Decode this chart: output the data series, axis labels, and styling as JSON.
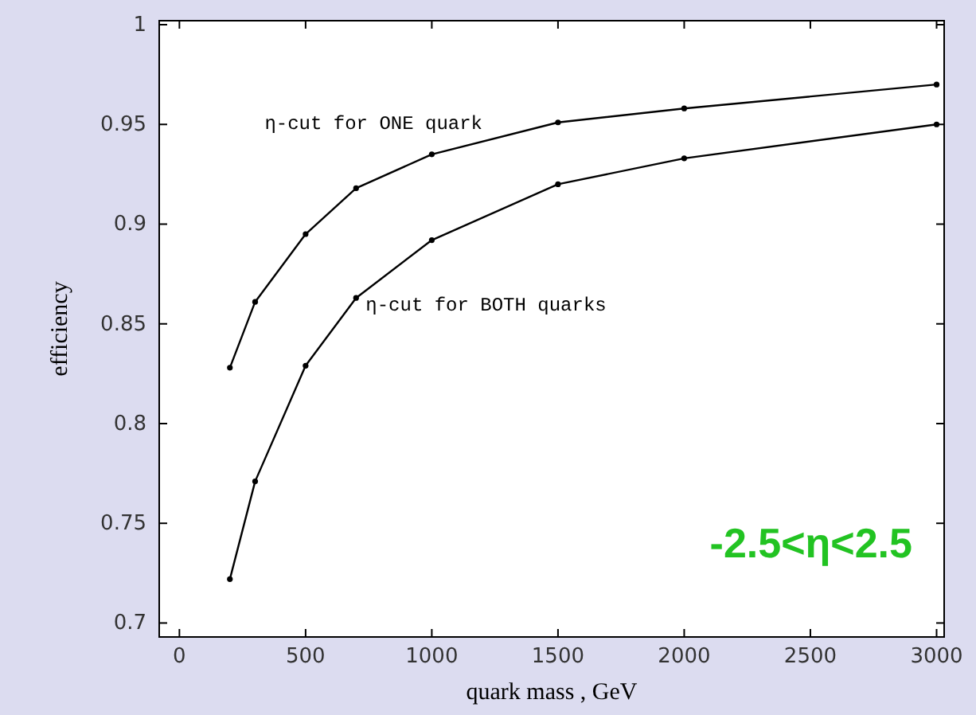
{
  "chart_data": {
    "type": "line",
    "xlabel": "quark mass , GeV",
    "ylabel": "efficiency",
    "xlim": [
      -80,
      3030
    ],
    "ylim": [
      0.693,
      1.002
    ],
    "xticks": [
      0,
      500,
      1000,
      1500,
      2000,
      2500,
      3000
    ],
    "yticks": [
      0.7,
      0.75,
      0.8,
      0.85,
      0.9,
      0.95,
      1
    ],
    "marker": "circle",
    "line_style": "solid",
    "grid": false,
    "series": [
      {
        "name": "η-cut for ONE quark",
        "color": "#000000",
        "x": [
          200,
          300,
          500,
          700,
          1000,
          1500,
          2000,
          3000
        ],
        "values": [
          0.828,
          0.861,
          0.895,
          0.918,
          0.935,
          0.951,
          0.958,
          0.97
        ]
      },
      {
        "name": "η-cut for BOTH quarks",
        "color": "#000000",
        "x": [
          200,
          300,
          500,
          700,
          1000,
          1500,
          2000,
          3000
        ],
        "values": [
          0.722,
          0.771,
          0.829,
          0.863,
          0.892,
          0.92,
          0.933,
          0.95
        ]
      }
    ],
    "annotations": [
      "-2.5<η<2.5"
    ]
  }
}
